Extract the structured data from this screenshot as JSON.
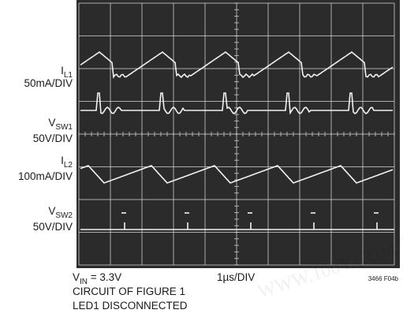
{
  "watermark": "WWW.100Y.COM.TW",
  "traces": [
    {
      "symbol": "I",
      "subscript": "L1",
      "scale": "50mA/DIV"
    },
    {
      "symbol": "V",
      "subscript": "SW1",
      "scale": "50V/DIV"
    },
    {
      "symbol": "I",
      "subscript": "L2",
      "scale": "100mA/DIV"
    },
    {
      "symbol": "V",
      "subscript": "SW2",
      "scale": "50V/DIV"
    }
  ],
  "footer": {
    "vin_symbol": "V",
    "vin_subscript": "IN",
    "vin_value": " = 3.3V",
    "timebase": "1µs/DIV",
    "figure_id": "3466 F04b",
    "notes": [
      "CIRCUIT OF FIGURE 1",
      "LED1 DISCONNECTED"
    ]
  }
}
